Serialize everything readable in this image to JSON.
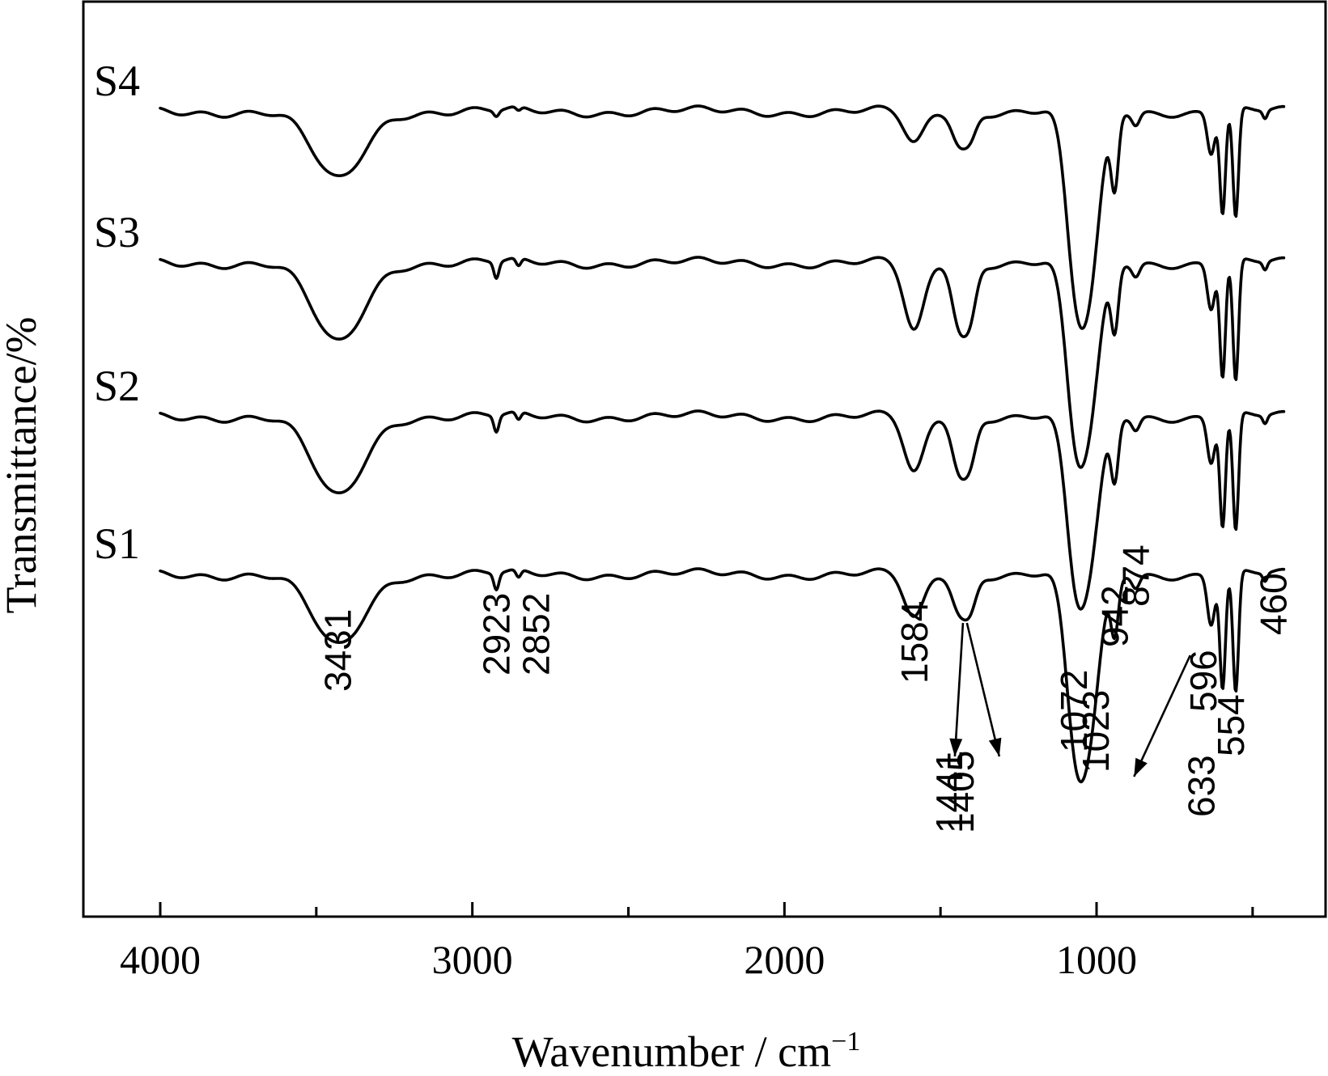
{
  "chart_data": {
    "type": "line",
    "xlabel": "Wavenumber / cm",
    "xlabel_superscript": "−1",
    "ylabel": "Transmittance/%",
    "xlim": [
      4000,
      400
    ],
    "x_reversed": true,
    "xticks": [
      4000,
      3000,
      2000,
      1000
    ],
    "minor_ticks": [
      3500,
      2500,
      1500,
      500
    ],
    "yticks_shown": false,
    "grid": false,
    "series": [
      {
        "name": "S4",
        "peaks": [
          {
            "x": 3431,
            "d": 0.85
          },
          {
            "x": 2923,
            "d": 0.07
          },
          {
            "x": 2852,
            "d": 0.05
          },
          {
            "x": 1584,
            "d": 0.4
          },
          {
            "x": 1441,
            "d": 0.35
          },
          {
            "x": 1405,
            "d": 0.3
          },
          {
            "x": 1072,
            "d": 1.6
          },
          {
            "x": 1023,
            "d": 2.0
          },
          {
            "x": 942,
            "d": 0.9
          },
          {
            "x": 874,
            "d": 0.15
          },
          {
            "x": 633,
            "d": 0.5
          },
          {
            "x": 596,
            "d": 1.25
          },
          {
            "x": 554,
            "d": 1.35
          },
          {
            "x": 460,
            "d": 0.1
          }
        ]
      },
      {
        "name": "S3",
        "peaks": [
          {
            "x": 3431,
            "d": 1.0
          },
          {
            "x": 2923,
            "d": 0.2
          },
          {
            "x": 2852,
            "d": 0.1
          },
          {
            "x": 1584,
            "d": 0.85
          },
          {
            "x": 1441,
            "d": 0.7
          },
          {
            "x": 1405,
            "d": 0.6
          },
          {
            "x": 1072,
            "d": 1.65
          },
          {
            "x": 1023,
            "d": 1.75
          },
          {
            "x": 942,
            "d": 0.8
          },
          {
            "x": 874,
            "d": 0.15
          },
          {
            "x": 633,
            "d": 0.55
          },
          {
            "x": 596,
            "d": 1.4
          },
          {
            "x": 554,
            "d": 1.5
          },
          {
            "x": 460,
            "d": 0.1
          }
        ]
      },
      {
        "name": "S2",
        "peaks": [
          {
            "x": 3431,
            "d": 1.0
          },
          {
            "x": 2923,
            "d": 0.2
          },
          {
            "x": 2852,
            "d": 0.1
          },
          {
            "x": 1584,
            "d": 0.7
          },
          {
            "x": 1441,
            "d": 0.6
          },
          {
            "x": 1405,
            "d": 0.5
          },
          {
            "x": 1072,
            "d": 1.55
          },
          {
            "x": 1023,
            "d": 1.65
          },
          {
            "x": 942,
            "d": 0.75
          },
          {
            "x": 874,
            "d": 0.15
          },
          {
            "x": 633,
            "d": 0.55
          },
          {
            "x": 596,
            "d": 1.35
          },
          {
            "x": 554,
            "d": 1.45
          },
          {
            "x": 460,
            "d": 0.1
          }
        ]
      },
      {
        "name": "S1",
        "peaks": [
          {
            "x": 3431,
            "d": 0.9
          },
          {
            "x": 2923,
            "d": 0.2
          },
          {
            "x": 2852,
            "d": 0.1
          },
          {
            "x": 1584,
            "d": 0.55
          },
          {
            "x": 1441,
            "d": 0.4
          },
          {
            "x": 1405,
            "d": 0.4
          },
          {
            "x": 1072,
            "d": 1.65
          },
          {
            "x": 1023,
            "d": 1.8
          },
          {
            "x": 942,
            "d": 0.7
          },
          {
            "x": 874,
            "d": 0.15
          },
          {
            "x": 633,
            "d": 0.6
          },
          {
            "x": 596,
            "d": 1.4
          },
          {
            "x": 554,
            "d": 1.5
          },
          {
            "x": 460,
            "d": 0.1
          }
        ]
      }
    ],
    "peak_annotations": [
      {
        "label": "3431",
        "x": 3431
      },
      {
        "label": "2923",
        "x": 2923
      },
      {
        "label": "2852",
        "x": 2852
      },
      {
        "label": "1584",
        "x": 1584
      },
      {
        "label": "1441",
        "x": 1441,
        "arrow": true
      },
      {
        "label": "1405",
        "x": 1405,
        "arrow": true
      },
      {
        "label": "1072",
        "x": 1072
      },
      {
        "label": "1023",
        "x": 1023
      },
      {
        "label": "942",
        "x": 942
      },
      {
        "label": "874",
        "x": 874
      },
      {
        "label": "633",
        "x": 633,
        "arrow": true
      },
      {
        "label": "596",
        "x": 596
      },
      {
        "label": "554",
        "x": 554
      },
      {
        "label": "460",
        "x": 460
      }
    ]
  }
}
